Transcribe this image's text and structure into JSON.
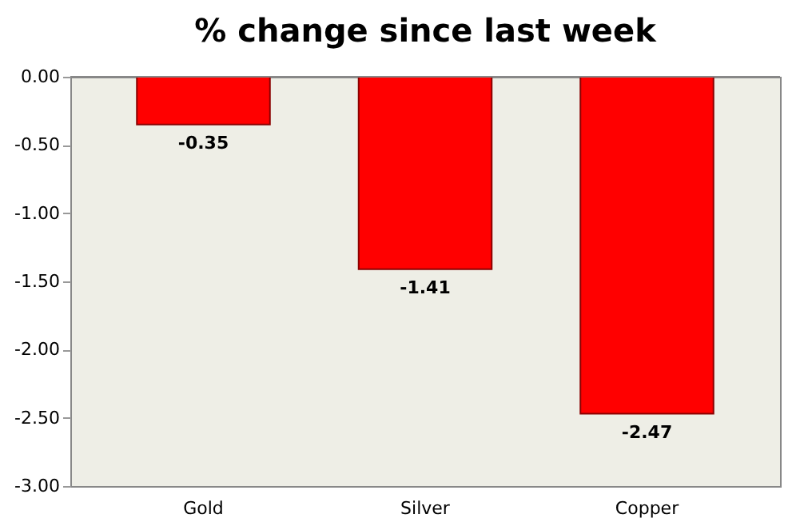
{
  "chart_data": {
    "type": "bar",
    "title": "% change since last week",
    "categories": [
      "Gold",
      "Silver",
      "Copper"
    ],
    "values": [
      -0.35,
      -1.41,
      -2.47
    ],
    "color": "#ff0000",
    "ylim": [
      -3,
      0
    ],
    "yticks": [
      {
        "value": 0,
        "label": "0.00"
      },
      {
        "value": -0.5,
        "label": "-0.50"
      },
      {
        "value": -1,
        "label": "-1.00"
      },
      {
        "value": -1.5,
        "label": "-1.50"
      },
      {
        "value": -2,
        "label": "-2.00"
      },
      {
        "value": -2.5,
        "label": "-2.50"
      },
      {
        "value": -3,
        "label": "-3.00"
      }
    ],
    "data_labels": true,
    "grid": false
  }
}
